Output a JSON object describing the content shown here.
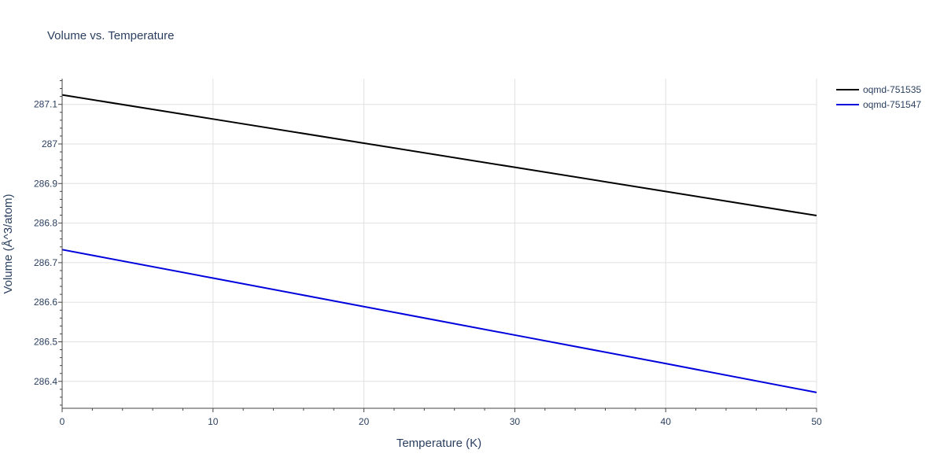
{
  "chart_data": {
    "type": "line",
    "title": "Volume vs. Temperature",
    "xlabel": "Temperature (K)",
    "ylabel": "Volume (Å^3/atom)",
    "xlim": [
      0,
      50
    ],
    "ylim": [
      286.332,
      287.165
    ],
    "x_ticks": [
      0,
      10,
      20,
      30,
      40,
      50
    ],
    "x_tick_labels": [
      "0",
      "10",
      "20",
      "30",
      "40",
      "50"
    ],
    "y_ticks": [
      286.4,
      286.5,
      286.6,
      286.7,
      286.8,
      286.9,
      287.0,
      287.1
    ],
    "y_tick_labels": [
      "286.4",
      "286.5",
      "286.6",
      "286.7",
      "286.8",
      "286.9",
      "287",
      "287.1"
    ],
    "grid": true,
    "legend_position": "top-right",
    "series": [
      {
        "name": "oqmd-751535",
        "color": "#000000",
        "x": [
          0,
          10,
          20,
          30,
          40,
          50
        ],
        "y": [
          287.124,
          287.063,
          287.002,
          286.941,
          286.88,
          286.819
        ]
      },
      {
        "name": "oqmd-751547",
        "color": "#0000dd",
        "x": [
          0,
          10,
          20,
          30,
          40,
          50
        ],
        "y": [
          286.733,
          286.661,
          286.589,
          286.517,
          286.445,
          286.372
        ]
      }
    ]
  }
}
